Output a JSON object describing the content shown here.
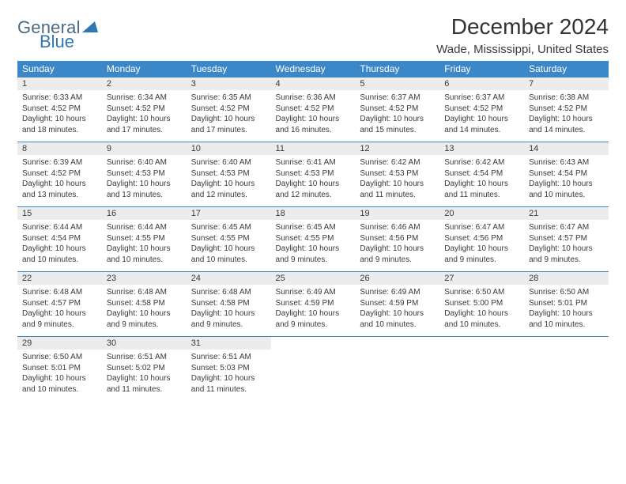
{
  "logo": {
    "line1": "General",
    "line2": "Blue",
    "triangle_color": "#2f76b7"
  },
  "title": "December 2024",
  "subtitle": "Wade, Mississippi, United States",
  "colors": {
    "header_bg": "#3b87c8",
    "header_text": "#ffffff",
    "daynum_bg": "#ececec",
    "row_border": "#3b87c8",
    "body_text": "#3a3a3a",
    "page_bg": "#ffffff"
  },
  "typography": {
    "title_fontsize": 28,
    "subtitle_fontsize": 15,
    "dayheader_fontsize": 12,
    "daynum_fontsize": 11,
    "body_fontsize": 10
  },
  "day_headers": [
    "Sunday",
    "Monday",
    "Tuesday",
    "Wednesday",
    "Thursday",
    "Friday",
    "Saturday"
  ],
  "weeks": [
    [
      {
        "n": "1",
        "sr": "Sunrise: 6:33 AM",
        "ss": "Sunset: 4:52 PM",
        "d1": "Daylight: 10 hours",
        "d2": "and 18 minutes."
      },
      {
        "n": "2",
        "sr": "Sunrise: 6:34 AM",
        "ss": "Sunset: 4:52 PM",
        "d1": "Daylight: 10 hours",
        "d2": "and 17 minutes."
      },
      {
        "n": "3",
        "sr": "Sunrise: 6:35 AM",
        "ss": "Sunset: 4:52 PM",
        "d1": "Daylight: 10 hours",
        "d2": "and 17 minutes."
      },
      {
        "n": "4",
        "sr": "Sunrise: 6:36 AM",
        "ss": "Sunset: 4:52 PM",
        "d1": "Daylight: 10 hours",
        "d2": "and 16 minutes."
      },
      {
        "n": "5",
        "sr": "Sunrise: 6:37 AM",
        "ss": "Sunset: 4:52 PM",
        "d1": "Daylight: 10 hours",
        "d2": "and 15 minutes."
      },
      {
        "n": "6",
        "sr": "Sunrise: 6:37 AM",
        "ss": "Sunset: 4:52 PM",
        "d1": "Daylight: 10 hours",
        "d2": "and 14 minutes."
      },
      {
        "n": "7",
        "sr": "Sunrise: 6:38 AM",
        "ss": "Sunset: 4:52 PM",
        "d1": "Daylight: 10 hours",
        "d2": "and 14 minutes."
      }
    ],
    [
      {
        "n": "8",
        "sr": "Sunrise: 6:39 AM",
        "ss": "Sunset: 4:52 PM",
        "d1": "Daylight: 10 hours",
        "d2": "and 13 minutes."
      },
      {
        "n": "9",
        "sr": "Sunrise: 6:40 AM",
        "ss": "Sunset: 4:53 PM",
        "d1": "Daylight: 10 hours",
        "d2": "and 13 minutes."
      },
      {
        "n": "10",
        "sr": "Sunrise: 6:40 AM",
        "ss": "Sunset: 4:53 PM",
        "d1": "Daylight: 10 hours",
        "d2": "and 12 minutes."
      },
      {
        "n": "11",
        "sr": "Sunrise: 6:41 AM",
        "ss": "Sunset: 4:53 PM",
        "d1": "Daylight: 10 hours",
        "d2": "and 12 minutes."
      },
      {
        "n": "12",
        "sr": "Sunrise: 6:42 AM",
        "ss": "Sunset: 4:53 PM",
        "d1": "Daylight: 10 hours",
        "d2": "and 11 minutes."
      },
      {
        "n": "13",
        "sr": "Sunrise: 6:42 AM",
        "ss": "Sunset: 4:54 PM",
        "d1": "Daylight: 10 hours",
        "d2": "and 11 minutes."
      },
      {
        "n": "14",
        "sr": "Sunrise: 6:43 AM",
        "ss": "Sunset: 4:54 PM",
        "d1": "Daylight: 10 hours",
        "d2": "and 10 minutes."
      }
    ],
    [
      {
        "n": "15",
        "sr": "Sunrise: 6:44 AM",
        "ss": "Sunset: 4:54 PM",
        "d1": "Daylight: 10 hours",
        "d2": "and 10 minutes."
      },
      {
        "n": "16",
        "sr": "Sunrise: 6:44 AM",
        "ss": "Sunset: 4:55 PM",
        "d1": "Daylight: 10 hours",
        "d2": "and 10 minutes."
      },
      {
        "n": "17",
        "sr": "Sunrise: 6:45 AM",
        "ss": "Sunset: 4:55 PM",
        "d1": "Daylight: 10 hours",
        "d2": "and 10 minutes."
      },
      {
        "n": "18",
        "sr": "Sunrise: 6:45 AM",
        "ss": "Sunset: 4:55 PM",
        "d1": "Daylight: 10 hours",
        "d2": "and 9 minutes."
      },
      {
        "n": "19",
        "sr": "Sunrise: 6:46 AM",
        "ss": "Sunset: 4:56 PM",
        "d1": "Daylight: 10 hours",
        "d2": "and 9 minutes."
      },
      {
        "n": "20",
        "sr": "Sunrise: 6:47 AM",
        "ss": "Sunset: 4:56 PM",
        "d1": "Daylight: 10 hours",
        "d2": "and 9 minutes."
      },
      {
        "n": "21",
        "sr": "Sunrise: 6:47 AM",
        "ss": "Sunset: 4:57 PM",
        "d1": "Daylight: 10 hours",
        "d2": "and 9 minutes."
      }
    ],
    [
      {
        "n": "22",
        "sr": "Sunrise: 6:48 AM",
        "ss": "Sunset: 4:57 PM",
        "d1": "Daylight: 10 hours",
        "d2": "and 9 minutes."
      },
      {
        "n": "23",
        "sr": "Sunrise: 6:48 AM",
        "ss": "Sunset: 4:58 PM",
        "d1": "Daylight: 10 hours",
        "d2": "and 9 minutes."
      },
      {
        "n": "24",
        "sr": "Sunrise: 6:48 AM",
        "ss": "Sunset: 4:58 PM",
        "d1": "Daylight: 10 hours",
        "d2": "and 9 minutes."
      },
      {
        "n": "25",
        "sr": "Sunrise: 6:49 AM",
        "ss": "Sunset: 4:59 PM",
        "d1": "Daylight: 10 hours",
        "d2": "and 9 minutes."
      },
      {
        "n": "26",
        "sr": "Sunrise: 6:49 AM",
        "ss": "Sunset: 4:59 PM",
        "d1": "Daylight: 10 hours",
        "d2": "and 10 minutes."
      },
      {
        "n": "27",
        "sr": "Sunrise: 6:50 AM",
        "ss": "Sunset: 5:00 PM",
        "d1": "Daylight: 10 hours",
        "d2": "and 10 minutes."
      },
      {
        "n": "28",
        "sr": "Sunrise: 6:50 AM",
        "ss": "Sunset: 5:01 PM",
        "d1": "Daylight: 10 hours",
        "d2": "and 10 minutes."
      }
    ],
    [
      {
        "n": "29",
        "sr": "Sunrise: 6:50 AM",
        "ss": "Sunset: 5:01 PM",
        "d1": "Daylight: 10 hours",
        "d2": "and 10 minutes."
      },
      {
        "n": "30",
        "sr": "Sunrise: 6:51 AM",
        "ss": "Sunset: 5:02 PM",
        "d1": "Daylight: 10 hours",
        "d2": "and 11 minutes."
      },
      {
        "n": "31",
        "sr": "Sunrise: 6:51 AM",
        "ss": "Sunset: 5:03 PM",
        "d1": "Daylight: 10 hours",
        "d2": "and 11 minutes."
      },
      null,
      null,
      null,
      null
    ]
  ]
}
